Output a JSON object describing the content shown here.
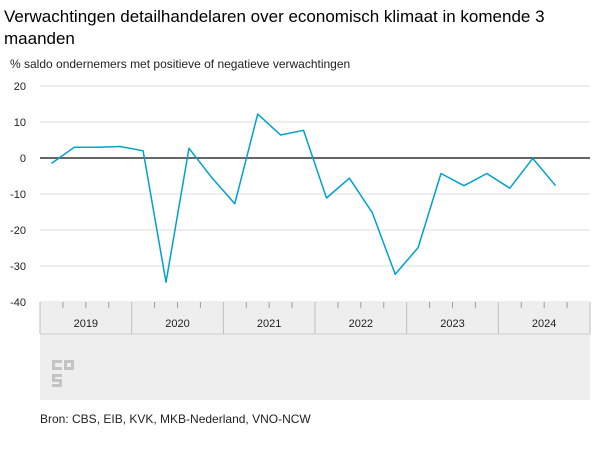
{
  "title": "Verwachtingen detailhandelaren over economisch klimaat in komende 3 maanden",
  "source": "Bron: CBS, EIB, KVK, MKB-Nederland, VNO-NCW",
  "logo": {
    "icon": "cbs-logo",
    "text": "cbs"
  },
  "colors": {
    "line": "#00a1cd",
    "zero": "#333333",
    "grid": "#dcdcdc",
    "axis_band": "#eeeeee"
  },
  "chart_data": {
    "type": "line",
    "ylabel": "% saldo ondernemers met positieve of negatieve verwachtingen",
    "xlabel": "",
    "ylim": [
      -40,
      20
    ],
    "y_ticks": [
      20,
      10,
      0,
      -10,
      -20,
      -30,
      -40
    ],
    "x_range": [
      2018.75,
      2024.75
    ],
    "year_labels": [
      "2019",
      "2020",
      "2021",
      "2022",
      "2023",
      "2024"
    ],
    "grid": true,
    "x": [
      2018.875,
      2019.125,
      2019.375,
      2019.625,
      2019.875,
      2020.125,
      2020.375,
      2020.625,
      2020.875,
      2021.125,
      2021.375,
      2021.625,
      2021.875,
      2022.125,
      2022.375,
      2022.625,
      2022.875,
      2023.125,
      2023.375,
      2023.625,
      2023.875,
      2024.125,
      2024.375,
      2024.625
    ],
    "series": [
      {
        "values": [
          -1.5,
          3,
          3,
          3.2,
          2,
          -34.5,
          2.7,
          -5.5,
          -12.7,
          12.2,
          6.4,
          7.7,
          -11.1,
          -5.6,
          -15.2,
          -32.3,
          -24.9,
          -4.3,
          -7.7,
          -4.3,
          -8.4,
          -0.1,
          -7.7,
          null
        ]
      }
    ]
  }
}
